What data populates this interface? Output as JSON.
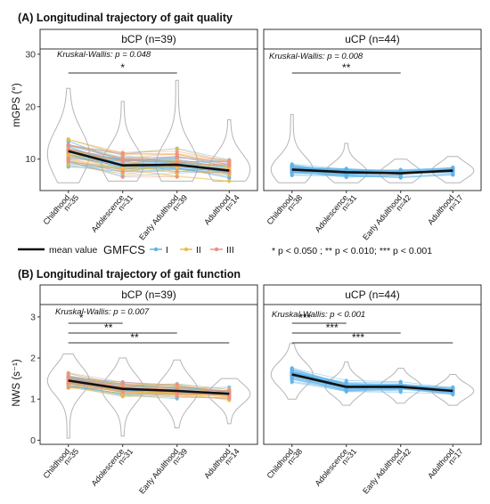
{
  "chart_data": [
    {
      "panel_title": "(A) Longitudinal trajectory of gait quality",
      "type": "line",
      "ylabel": "mGPS (°)",
      "ylim": [
        4,
        31
      ],
      "yticks": [
        10,
        20,
        30
      ],
      "facets": [
        {
          "title": "bCP (n=39)",
          "kruskal": "Kruskal-Wallis: p = 0.048",
          "categories": [
            "Childhood",
            "Adolescence",
            "Early Adulthood",
            "Adulthood"
          ],
          "n_labels": [
            "n=35",
            "n=31",
            "n=39",
            "n=14"
          ],
          "mean": [
            11.5,
            8.8,
            8.9,
            7.8
          ],
          "sig": [
            {
              "from": 0,
              "to": 2,
              "label": "*"
            }
          ]
        },
        {
          "title": "uCP (n=44)",
          "kruskal": "Kruskal-Wallis: p = 0.008",
          "categories": [
            "Childhood",
            "Adolescence",
            "Early Adulthood",
            "Adulthood"
          ],
          "n_labels": [
            "n=38",
            "n=31",
            "n=42",
            "n=17"
          ],
          "mean": [
            8.0,
            7.5,
            7.3,
            7.8
          ],
          "sig": [
            {
              "from": 0,
              "to": 2,
              "label": "**"
            }
          ]
        }
      ]
    },
    {
      "panel_title": "(B) Longitudinal trajectory of gait function",
      "type": "line",
      "ylabel": "NWS  (s⁻¹)",
      "ylim": [
        -0.1,
        3.3
      ],
      "yticks": [
        0,
        1,
        2,
        3
      ],
      "facets": [
        {
          "title": "bCP (n=39)",
          "kruskal": "Kruskal-Wallis: p = 0.007",
          "categories": [
            "Childhood",
            "Adolescence",
            "Early Adulthood",
            "Adulthood"
          ],
          "n_labels": [
            "n=35",
            "n=31",
            "n=39",
            "n=14"
          ],
          "mean": [
            1.45,
            1.25,
            1.2,
            1.13
          ],
          "sig": [
            {
              "from": 0,
              "to": 1,
              "label": "*"
            },
            {
              "from": 0,
              "to": 2,
              "label": "**"
            },
            {
              "from": 0,
              "to": 3,
              "label": "**"
            }
          ]
        },
        {
          "title": "uCP (n=44)",
          "kruskal": "Kruskal-Wallis: p < 0.001",
          "categories": [
            "Childhood",
            "Adolescence",
            "Early Adulthood",
            "Adulthood"
          ],
          "n_labels": [
            "n=38",
            "n=31",
            "n=42",
            "n=17"
          ],
          "mean": [
            1.6,
            1.3,
            1.3,
            1.2
          ],
          "sig": [
            {
              "from": 0,
              "to": 1,
              "label": "***"
            },
            {
              "from": 0,
              "to": 2,
              "label": "***"
            },
            {
              "from": 0,
              "to": 3,
              "label": "***"
            }
          ]
        }
      ]
    }
  ],
  "legend": {
    "mean_label": "mean value",
    "group_title": "GMFCS",
    "levels": [
      {
        "label": "I",
        "color": "#5fb3e8"
      },
      {
        "label": "II",
        "color": "#f3b941"
      },
      {
        "label": "III",
        "color": "#ee8f84"
      }
    ],
    "significance": "* p < 0.050 ; ** p < 0.010; *** p < 0.001"
  },
  "colors": {
    "violin": "#b9b9b9",
    "mean": "#111111",
    "strip_bg": "#ffffff",
    "frame": "#333333"
  }
}
